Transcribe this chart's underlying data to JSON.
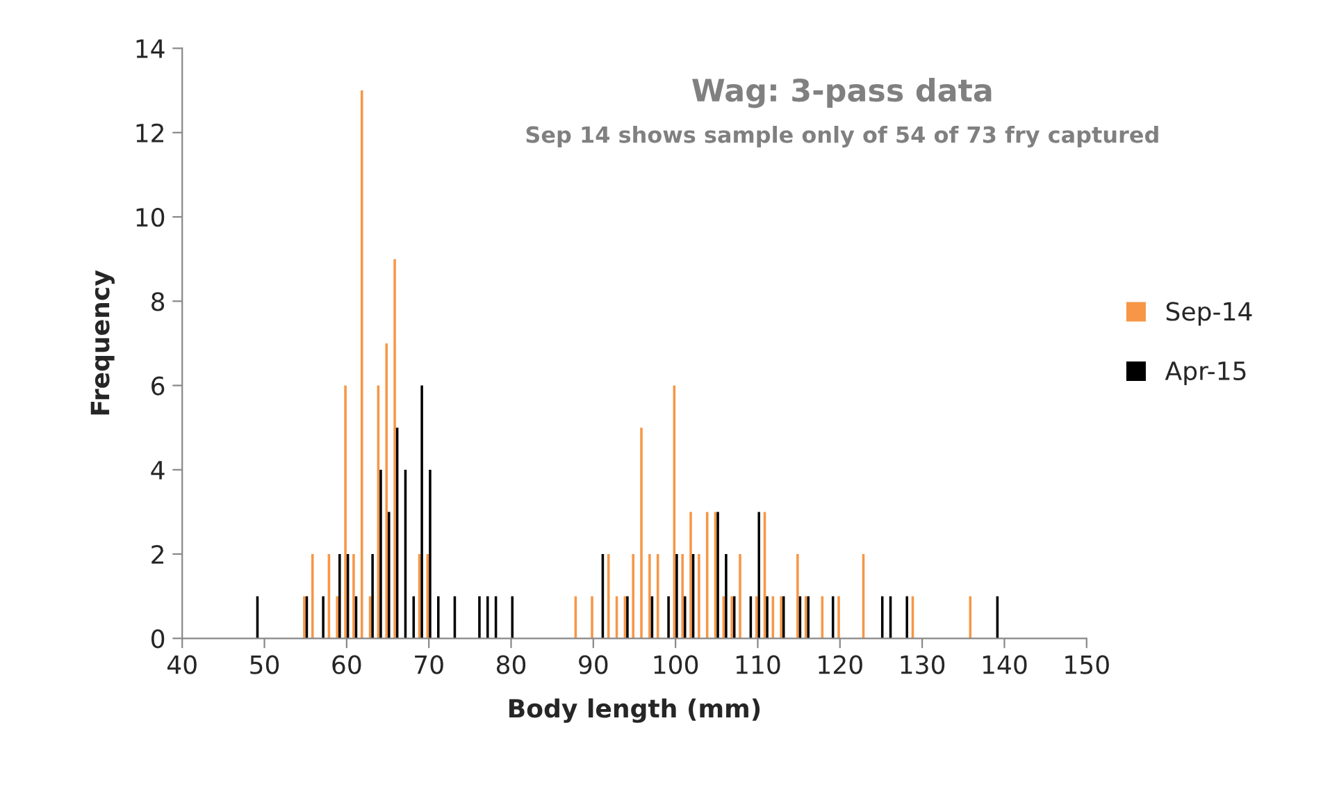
{
  "chart_data": {
    "type": "bar",
    "title": "Wag: 3-pass data",
    "subtitle": "Sep 14 shows sample only of 54 of 73 fry captured",
    "xlabel": "Body length (mm)",
    "ylabel": "Frequency",
    "series": [
      {
        "name": "Sep-14",
        "color": "#f79646",
        "x": [
          55,
          56,
          58,
          59,
          60,
          61,
          62,
          63,
          64,
          65,
          66,
          69,
          70,
          88,
          90,
          92,
          93,
          94,
          95,
          96,
          97,
          98,
          100,
          101,
          102,
          103,
          104,
          105,
          106,
          107,
          108,
          110,
          111,
          112,
          113,
          115,
          116,
          118,
          120,
          123,
          129,
          136
        ],
        "values": [
          1,
          2,
          2,
          1,
          6,
          2,
          13,
          1,
          6,
          7,
          9,
          2,
          2,
          1,
          1,
          2,
          1,
          1,
          2,
          5,
          2,
          2,
          6,
          2,
          3,
          2,
          3,
          3,
          1,
          1,
          2,
          1,
          3,
          1,
          1,
          2,
          1,
          1,
          1,
          2,
          1,
          1
        ]
      },
      {
        "name": "Apr-15",
        "color": "#000000",
        "x": [
          49,
          55,
          57,
          59,
          60,
          61,
          63,
          64,
          65,
          66,
          67,
          68,
          69,
          70,
          71,
          73,
          76,
          77,
          78,
          80,
          91,
          94,
          97,
          99,
          100,
          101,
          102,
          105,
          106,
          107,
          109,
          110,
          111,
          113,
          115,
          116,
          119,
          125,
          126,
          128,
          139
        ],
        "values": [
          1,
          1,
          1,
          2,
          2,
          1,
          2,
          4,
          3,
          5,
          4,
          1,
          6,
          4,
          1,
          1,
          1,
          1,
          1,
          1,
          2,
          1,
          1,
          1,
          2,
          1,
          2,
          3,
          2,
          1,
          1,
          3,
          1,
          1,
          1,
          1,
          1,
          1,
          1,
          1,
          1
        ]
      }
    ],
    "xlim": [
      40,
      150
    ],
    "xticks": [
      40,
      50,
      60,
      70,
      80,
      90,
      100,
      110,
      120,
      130,
      140,
      150
    ],
    "ylim": [
      0,
      14
    ],
    "yticks": [
      0,
      2,
      4,
      6,
      8,
      10,
      12,
      14
    ],
    "grid": false,
    "legend": "right"
  }
}
